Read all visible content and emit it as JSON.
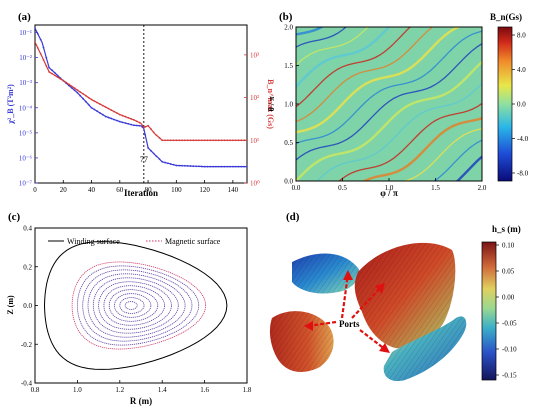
{
  "panels": {
    "a": {
      "label": "(a)",
      "xlabel": "Iteration",
      "ylabel_left": "χ²_B (T²m²)",
      "ylabel_right": "B_n^max (Gs)",
      "marker_label": "77",
      "x_ticks": [
        "0",
        "20",
        "40",
        "60",
        "80",
        "100",
        "120",
        "140"
      ],
      "y_left_ticks": [
        "10⁻¹",
        "10⁻²",
        "10⁻³",
        "10⁻⁴",
        "10⁻⁵",
        "10⁻⁶",
        "10⁻⁷"
      ],
      "y_right_ticks": [
        "10³",
        "10²",
        "10¹",
        "10⁰"
      ]
    },
    "b": {
      "label": "(b)",
      "xlabel": "φ / π",
      "ylabel": "θ / π",
      "colorbar_title": "B_n(Gs)",
      "x_ticks": [
        "0.0",
        "0.5",
        "1.0",
        "1.5",
        "2.0"
      ],
      "y_ticks": [
        "0.0",
        "0.5",
        "1.0",
        "1.5",
        "2.0"
      ],
      "colorbar_ticks": [
        "8.0",
        "4.0",
        "0.0",
        "-4.0",
        "-8.0"
      ]
    },
    "c": {
      "label": "(c)",
      "xlabel": "R (m)",
      "ylabel": "Z (m)",
      "legend": [
        "Winding surface",
        "Magnetic surface"
      ],
      "x_ticks": [
        "0.8",
        "1.0",
        "1.2",
        "1.4",
        "1.6",
        "1.8"
      ],
      "y_ticks": [
        "0.4",
        "0.2",
        "0.0",
        "-0.2",
        "-0.4"
      ]
    },
    "d": {
      "label": "(d)",
      "annotation": "Ports",
      "colorbar_title": "h_s (m)",
      "colorbar_ticks": [
        "0.10",
        "0.05",
        "0.00",
        "-0.05",
        "-0.10",
        "-0.15"
      ]
    }
  },
  "chart_data": [
    {
      "type": "line",
      "title": "",
      "xlabel": "Iteration",
      "ylabel": "χ²_B (T²m²)",
      "y2label": "B_n^max (Gs)",
      "xlim": [
        0,
        150
      ],
      "ylim_log10": [
        -7,
        -0.7
      ],
      "y2lim_log10": [
        0,
        3.7
      ],
      "yscale": "log",
      "vline_x": 77,
      "series": [
        {
          "name": "χ²_B",
          "color": "#3a3ad6",
          "axis": "left",
          "x": [
            0,
            5,
            10,
            20,
            30,
            40,
            50,
            60,
            70,
            75,
            77,
            80,
            90,
            100,
            120,
            150
          ],
          "y": [
            0.15,
            0.04,
            0.004,
            0.0012,
            0.0004,
            0.0001,
            4.5e-05,
            2.8e-05,
            2e-05,
            1.9e-05,
            1.5e-05,
            2.5e-06,
            7e-07,
            5e-07,
            4.5e-07,
            4.5e-07
          ]
        },
        {
          "name": "B_n^max",
          "color": "#d63a3a",
          "axis": "right",
          "x": [
            0,
            5,
            10,
            20,
            30,
            40,
            50,
            60,
            70,
            75,
            77,
            80,
            85,
            90,
            100,
            120,
            150
          ],
          "y": [
            2000,
            900,
            400,
            250,
            150,
            90,
            60,
            40,
            30,
            25,
            20,
            22,
            14,
            10,
            10,
            10,
            10
          ]
        }
      ]
    },
    {
      "type": "heatmap",
      "title": "",
      "xlabel": "φ / π",
      "ylabel": "θ / π",
      "xlim": [
        0,
        2
      ],
      "ylim": [
        0,
        2
      ],
      "zlim": [
        -8,
        8
      ],
      "colorbar_label": "B_n(Gs)"
    },
    {
      "type": "line",
      "title": "",
      "xlabel": "R (m)",
      "ylabel": "Z (m)",
      "xlim": [
        0.8,
        1.8
      ],
      "ylim": [
        -0.4,
        0.4
      ],
      "series": [
        {
          "name": "Winding surface",
          "color": "#000000"
        },
        {
          "name": "Magnetic surface",
          "color": "#cc3366"
        }
      ],
      "magnetic_axis_R": 1.25,
      "magnetic_axis_Z": 0.0
    }
  ],
  "colors": {
    "blue": "#3a3ad6",
    "red": "#d63a3a",
    "magenta": "#cc3366"
  }
}
